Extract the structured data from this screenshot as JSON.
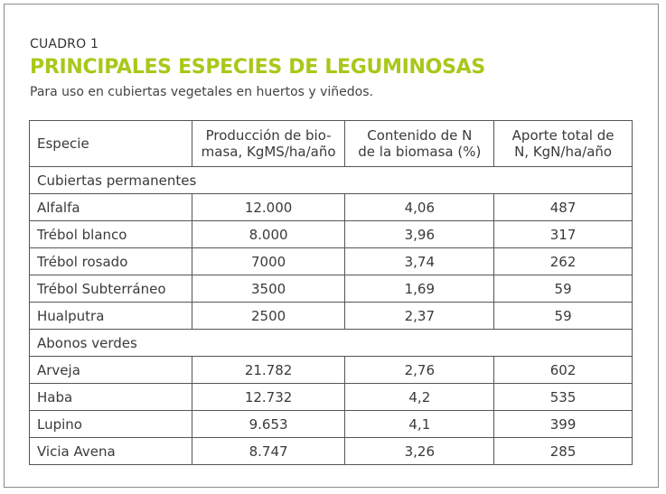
{
  "header": {
    "label": "CUADRO 1",
    "title": "PRINCIPALES ESPECIES DE LEGUMINOSAS",
    "subtitle": "Para uso en cubiertas vegetales en huertos y viñedos."
  },
  "colors": {
    "title": "#a8c81a",
    "border": "#555555",
    "text": "#3a3a3a"
  },
  "table": {
    "columns": [
      "Especie",
      "Producción de bio-\nmasa, KgMS/ha/año",
      "Contenido de N\nde la biomasa (%)",
      "Aporte total de\nN, KgN/ha/año"
    ],
    "sections": [
      {
        "name": "Cubiertas permanentes",
        "rows": [
          [
            "Alfalfa",
            "12.000",
            "4,06",
            "487"
          ],
          [
            "Trébol blanco",
            "8.000",
            "3,96",
            "317"
          ],
          [
            "Trébol rosado",
            "7000",
            "3,74",
            "262"
          ],
          [
            "Trébol Subterráneo",
            "3500",
            "1,69",
            "59"
          ],
          [
            "Hualputra",
            "2500",
            "2,37",
            "59"
          ]
        ]
      },
      {
        "name": "Abonos verdes",
        "rows": [
          [
            "Arveja",
            "21.782",
            "2,76",
            "602"
          ],
          [
            "Haba",
            "12.732",
            "4,2",
            "535"
          ],
          [
            "Lupino",
            "9.653",
            "4,1",
            "399"
          ],
          [
            "Vicia Avena",
            "8.747",
            "3,26",
            "285"
          ]
        ]
      }
    ]
  }
}
